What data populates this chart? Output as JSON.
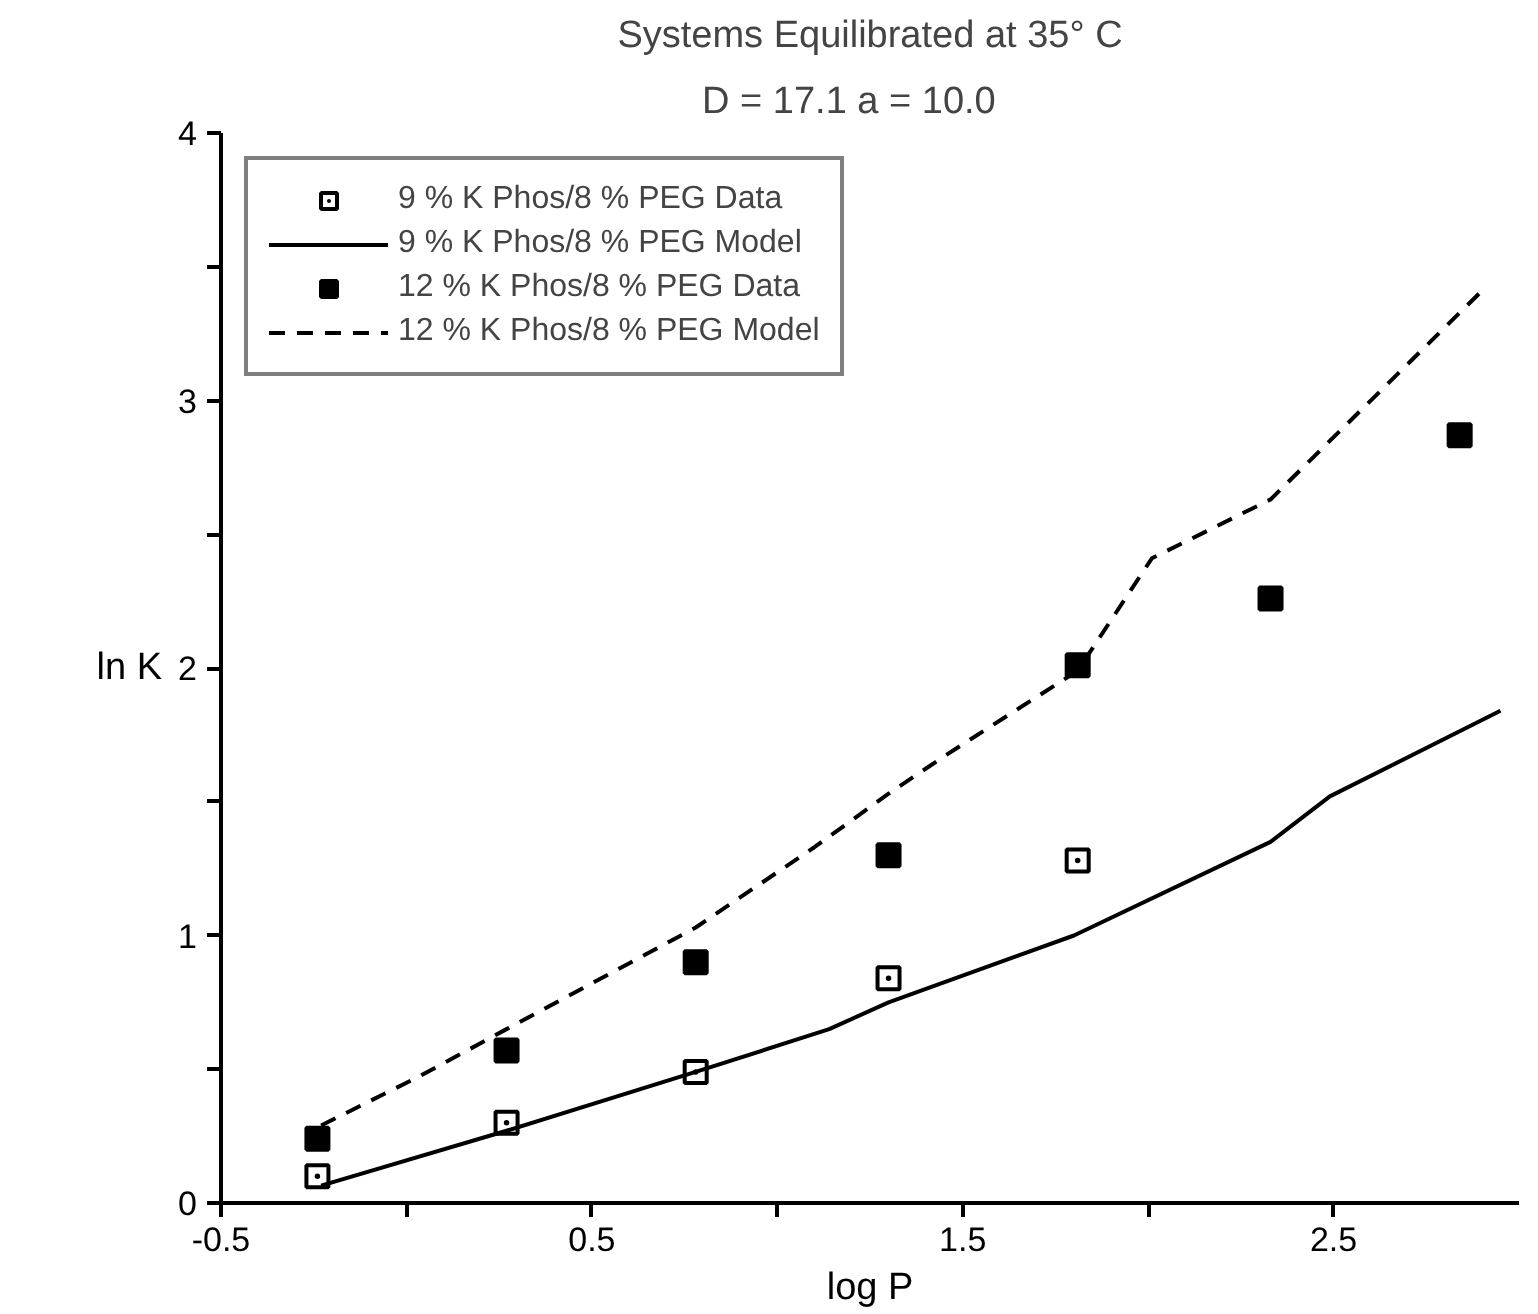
{
  "chart_data": {
    "type": "line",
    "title": "Systems Equilibrated at 35° C",
    "subtitle": "D = 17.1     a = 10.0",
    "xlabel": "log P",
    "ylabel": "ln K",
    "xlim": [
      -0.5,
      3.0
    ],
    "ylim": [
      0,
      4
    ],
    "xticks": [
      -0.5,
      {
        "value": 0,
        "label": null
      },
      0.5,
      {
        "value": 1,
        "label": null
      },
      1.5,
      {
        "value": 2,
        "label": null
      },
      2.5
    ],
    "yticks": [
      0,
      {
        "value": 0.5,
        "label": null
      },
      1,
      {
        "value": 1.5,
        "label": null
      },
      2,
      {
        "value": 2.5,
        "label": null
      },
      3,
      {
        "value": 3.5,
        "label": null
      },
      4
    ],
    "grid": false,
    "legend": "top left",
    "series": [
      {
        "name": "9 % K Phos/8 % PEG Data",
        "type": "scatter",
        "marker": "square_dot",
        "color": "#000000",
        "x": [
          -0.24,
          0.27,
          0.78,
          1.3,
          1.81
        ],
        "values": [
          0.1,
          0.3,
          0.49,
          0.84,
          1.28
        ]
      },
      {
        "name": "9 % K Phos/8 % PEG Model",
        "line_style": "solid",
        "color": "#000000",
        "x": [
          -0.23,
          0.27,
          0.78,
          1.14,
          1.3,
          1.8,
          2.33,
          2.49,
          2.95
        ],
        "values": [
          0.065,
          0.27,
          0.49,
          0.65,
          0.75,
          1.0,
          1.35,
          1.52,
          1.84
        ]
      },
      {
        "name": "12 % K Phos/8 % PEG Data",
        "type": "scatter",
        "marker": "square",
        "color": "#000000",
        "x": [
          -0.24,
          0.27,
          0.78,
          1.3,
          1.81,
          2.33,
          2.84
        ],
        "values": [
          0.24,
          0.57,
          0.9,
          1.3,
          2.01,
          2.26,
          2.87
        ]
      },
      {
        "name": "12 % K Phos/8 % PEG Model",
        "line_style": "dashed",
        "color": "#000000",
        "x": [
          -0.23,
          0.03,
          0.27,
          0.78,
          1.1,
          1.3,
          1.45,
          1.81,
          2.01,
          2.33,
          2.9
        ],
        "values": [
          0.29,
          0.47,
          0.65,
          1.03,
          1.33,
          1.53,
          1.67,
          1.99,
          2.41,
          2.63,
          3.41
        ]
      }
    ]
  }
}
